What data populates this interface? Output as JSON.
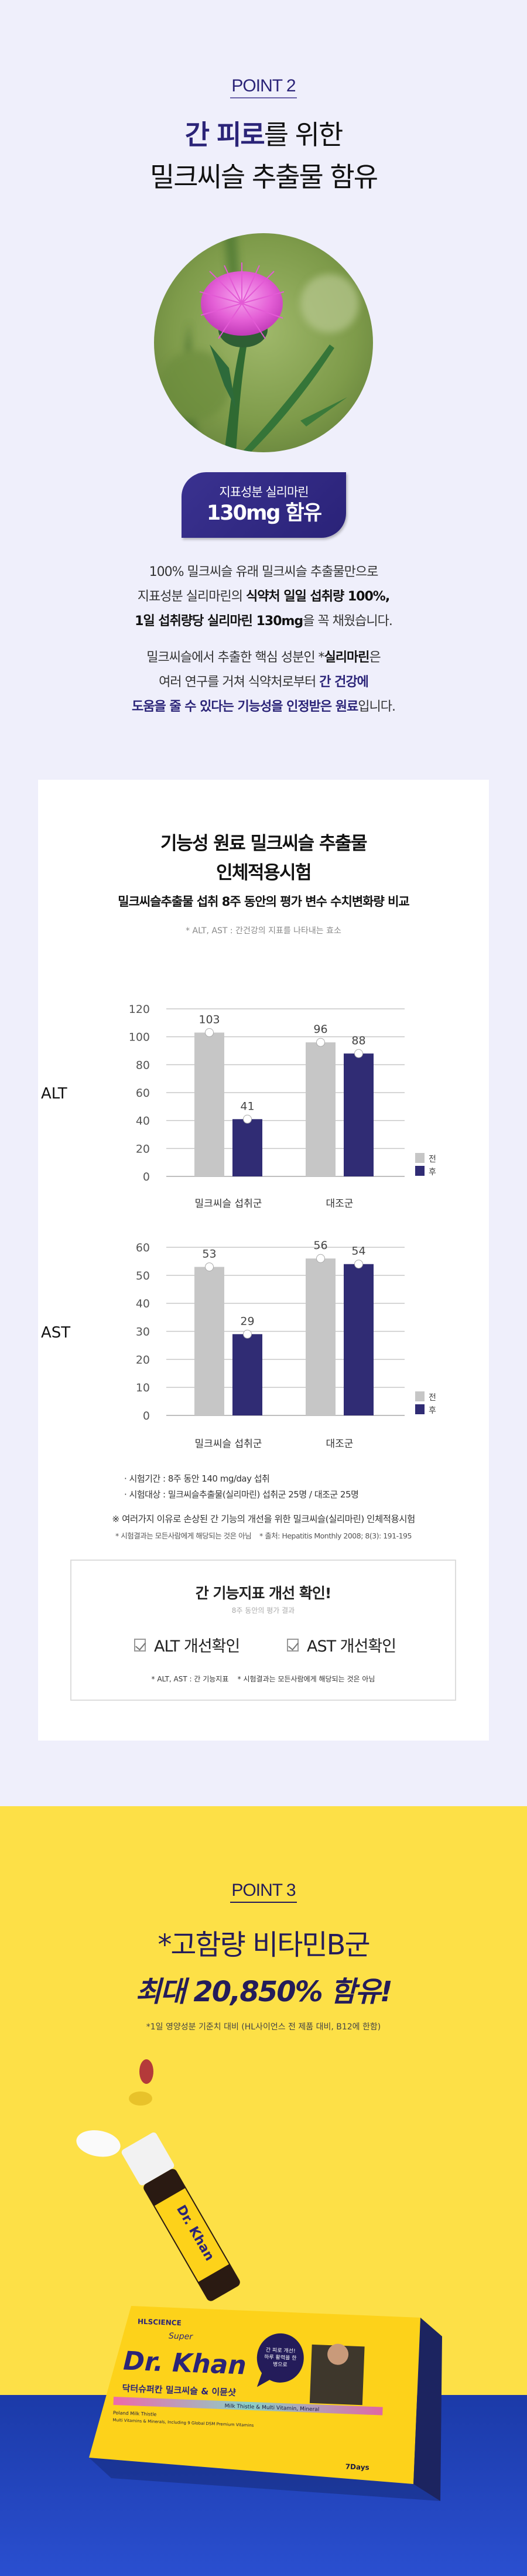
{
  "point2": {
    "label": "POINT 2",
    "headline_highlight": "간 피로",
    "headline_rest": "를 위한",
    "headline_line2": "밀크씨슬 추출물 함유"
  },
  "badge": {
    "line1": "지표성분 실리마린",
    "line2": "130mg 함유"
  },
  "intro": {
    "p1_l1": "100% 밀크씨슬 유래 밀크씨슬 추출물만으로",
    "p1_l2_a": "지표성분 실리마린의 ",
    "p1_l2_b": "식약처 일일 섭취량 100%,",
    "p1_l3_a": "1일 섭취량당 실리마린 130mg",
    "p1_l3_b": "을 꼭 채웠습니다.",
    "p2_l1_a": "밀크씨슬에서 추출한 핵심 성분인 *",
    "p2_l1_b": "실리마린",
    "p2_l1_c": "은",
    "p2_l2_a": "여러 연구를 거쳐 식약처로부터 ",
    "p2_l2_b": "간 건강에",
    "p2_l3_a": "도움을 줄 수 있다는 기능성을 인정받은 원료",
    "p2_l3_b": "입니다."
  },
  "study": {
    "title_l1": "기능성 원료 밀크씨슬 추출물",
    "title_l2": "인체적용시험",
    "subtitle": "밀크씨슬추출물 섭취 8주 동안의 평가 변수 수치변화량 비교",
    "note": "* ALT, AST : 간건강의 지표를 나타내는 효소",
    "info1": "· 시험기간 : 8주 동안 140 mg/day 섭취",
    "info2": "· 시험대상 : 밀크씨슬추출물(실리마린) 섭취군 25명 / 대조군 25명",
    "remark": "※ 여러가지 이유로 손상된 간 기능의 개선을 위한 밀크씨슬(실리마린) 인체적용시험",
    "disclaimer": "* 시험결과는 모든사람에게 해당되는 것은 아님    * 출처: Hepatitis Monthly 2008; 8(3): 191-195"
  },
  "chart_data": [
    {
      "type": "bar",
      "ylabel": "ALT",
      "categories": [
        "밀크씨슬 섭취군",
        "대조군"
      ],
      "series": [
        {
          "name": "전",
          "values": [
            103,
            96
          ],
          "color": "#c6c6c6"
        },
        {
          "name": "후",
          "values": [
            41,
            88
          ],
          "color": "#302c74"
        }
      ],
      "ylim": [
        0,
        120
      ],
      "yticks": [
        0,
        20,
        40,
        60,
        80,
        100,
        120
      ],
      "grid": true,
      "legend": "bottom-right"
    },
    {
      "type": "bar",
      "ylabel": "AST",
      "categories": [
        "밀크씨슬 섭취군",
        "대조군"
      ],
      "series": [
        {
          "name": "전",
          "values": [
            53,
            56
          ],
          "color": "#c6c6c6"
        },
        {
          "name": "후",
          "values": [
            29,
            54
          ],
          "color": "#302c74"
        }
      ],
      "ylim": [
        0,
        60
      ],
      "yticks": [
        0,
        10,
        20,
        30,
        40,
        50,
        60
      ],
      "grid": true,
      "legend": "bottom-right"
    }
  ],
  "result_box": {
    "title": "간 기능지표 개선 확인!",
    "subtitle": "8주 동안의 평가 결과",
    "check1": "ALT 개선확인",
    "check2": "AST 개선확인",
    "footnote": "* ALT, AST : 간 기능지표    * 시험결과는 모든사람에게 해당되는 것은 아님"
  },
  "point3": {
    "label": "POINT 3",
    "headline_l1": "*고함량 비타민B군",
    "headline_l2": "최대 20,850% 함유!",
    "note": "*1일 영양성분 기준치 대비 (HL사이언스 전 제품 대비, B12에 한함)"
  },
  "product": {
    "brand": "HLSCIENCE",
    "name_super": "Super",
    "name": "Dr. Khan",
    "name_kr": "닥터슈퍼칸 밀크씨슬 & 이뮨샷",
    "bubble": "간 피로 개선! 하루 활력을 한 병으로",
    "desc": "Milk Thistle & Multi Vitamin, Mineral",
    "feature1": "Poland Milk Thistle",
    "feature2": "Multi Vitamins & Minerals, Including 9 Global DSM Premium Vitamins",
    "days": "7Days",
    "colors": {
      "yellow": "#fde047",
      "navy": "#2b2478",
      "floor": "#1f3fb5"
    }
  }
}
